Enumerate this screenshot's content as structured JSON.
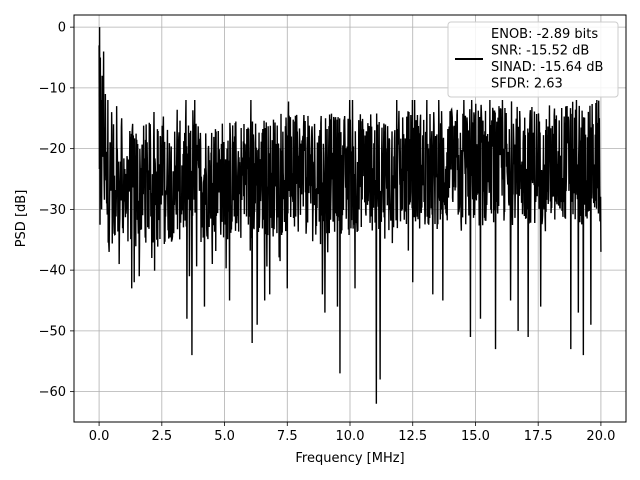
{
  "chart_data": {
    "type": "line",
    "title": "",
    "xlabel": "Frequency [MHz]",
    "ylabel": "PSD [dB]",
    "xlim": [
      -1.0,
      21.0
    ],
    "ylim": [
      -65,
      2
    ],
    "xticks": [
      0.0,
      2.5,
      5.0,
      7.5,
      10.0,
      12.5,
      15.0,
      17.5,
      20.0
    ],
    "xtick_labels": [
      "0.0",
      "2.5",
      "5.0",
      "7.5",
      "10.0",
      "12.5",
      "15.0",
      "17.5",
      "20.0"
    ],
    "yticks": [
      0,
      -10,
      -20,
      -30,
      -40,
      -50,
      -60
    ],
    "ytick_labels": [
      "0",
      "−10",
      "−20",
      "−30",
      "−40",
      "−50",
      "−60"
    ],
    "grid": true,
    "legend": {
      "position": "top-right",
      "entries": [
        "ENOB: -2.89 bits",
        "SNR: -15.52 dB",
        "SINAD: -15.64 dB",
        "SFDR: 2.63"
      ]
    },
    "series": [
      {
        "color": "#000000",
        "noise_floor_db": [
          -26,
          -22
        ],
        "upper_envelope_db": -13,
        "lower_envelope_db": -40,
        "points": [
          [
            0.0,
            -3
          ],
          [
            0.02,
            0
          ],
          [
            0.05,
            -5
          ],
          [
            0.08,
            -12
          ],
          [
            0.1,
            -30
          ],
          [
            0.12,
            -8
          ],
          [
            0.15,
            -19
          ],
          [
            0.18,
            -4
          ],
          [
            0.2,
            -25
          ],
          [
            0.25,
            -11
          ],
          [
            0.3,
            -29
          ],
          [
            0.35,
            -12
          ],
          [
            0.4,
            -37
          ],
          [
            0.5,
            -14
          ],
          [
            0.6,
            -34
          ],
          [
            0.7,
            -13
          ],
          [
            0.8,
            -39
          ],
          [
            0.9,
            -15
          ],
          [
            1.3,
            -43
          ],
          [
            1.4,
            -42
          ],
          [
            1.6,
            -41
          ],
          [
            2.1,
            -38
          ],
          [
            2.3,
            -35
          ],
          [
            3.5,
            -48
          ],
          [
            3.6,
            -41
          ],
          [
            3.7,
            -54
          ],
          [
            4.2,
            -46
          ],
          [
            5.2,
            -45
          ],
          [
            6.1,
            -52
          ],
          [
            6.3,
            -49
          ],
          [
            6.6,
            -45
          ],
          [
            6.8,
            -44
          ],
          [
            7.5,
            -43
          ],
          [
            8.9,
            -44
          ],
          [
            9.0,
            -47
          ],
          [
            9.5,
            -46
          ],
          [
            9.6,
            -57
          ],
          [
            10.2,
            -43
          ],
          [
            11.05,
            -62
          ],
          [
            11.2,
            -58
          ],
          [
            12.5,
            -42
          ],
          [
            13.3,
            -44
          ],
          [
            13.7,
            -45
          ],
          [
            14.8,
            -51
          ],
          [
            15.2,
            -48
          ],
          [
            15.8,
            -53
          ],
          [
            16.4,
            -45
          ],
          [
            16.7,
            -50
          ],
          [
            17.1,
            -51
          ],
          [
            17.6,
            -46
          ],
          [
            18.8,
            -53
          ],
          [
            19.1,
            -47
          ],
          [
            19.3,
            -54
          ],
          [
            19.6,
            -49
          ],
          [
            20.0,
            -37
          ]
        ]
      }
    ]
  }
}
